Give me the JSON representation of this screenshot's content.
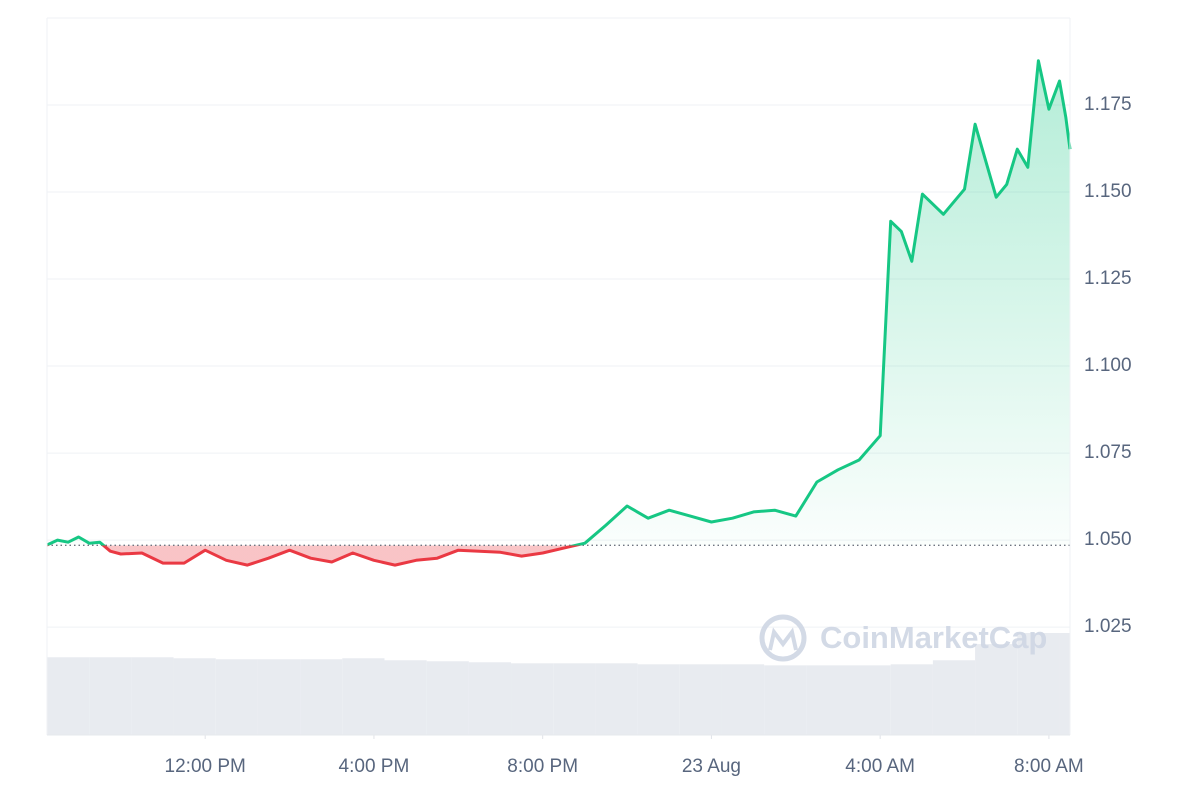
{
  "chart_data": {
    "type": "line",
    "watermark": "CoinMarketCap",
    "xlim": [
      8.25,
      32.5
    ],
    "xticks": [
      {
        "value": 12,
        "label": "12:00 PM"
      },
      {
        "value": 16,
        "label": "4:00 PM"
      },
      {
        "value": 20,
        "label": "8:00 PM"
      },
      {
        "value": 24,
        "label": "23 Aug"
      },
      {
        "value": 28,
        "label": "4:00 AM"
      },
      {
        "value": 32,
        "label": "8:00 AM"
      }
    ],
    "ylim": [
      0.994,
      1.2
    ],
    "yticks": [
      1.025,
      {
        "value": 1.05,
        "label": "1.050"
      },
      1.075,
      {
        "value": 1.1,
        "label": "1.100"
      },
      1.125,
      {
        "value": 1.15,
        "label": "1.150"
      },
      1.175
    ],
    "grid": true,
    "baseline": 1.0485,
    "up_color": "#16c784",
    "down_color": "#ea3943",
    "x": [
      8.25,
      8.5,
      8.75,
      9,
      9.25,
      9.5,
      9.75,
      10,
      10.5,
      11,
      11.5,
      12,
      12.5,
      13,
      13.5,
      14,
      14.5,
      15,
      15.5,
      16,
      16.5,
      17,
      17.5,
      18,
      18.5,
      19,
      19.5,
      20,
      20.5,
      21,
      21.5,
      22,
      22.5,
      23,
      23.5,
      24,
      24.5,
      25,
      25.5,
      26,
      26.5,
      27,
      27.5,
      28,
      28.25,
      28.5,
      28.75,
      29,
      29.5,
      30,
      30.25,
      30.75,
      31,
      31.25,
      31.5,
      31.75,
      32,
      32.25,
      32.4,
      32.5
    ],
    "values": [
      1.0486,
      1.05,
      1.0494,
      1.0509,
      1.0491,
      1.0494,
      1.0468,
      1.046,
      1.0463,
      1.0434,
      1.0434,
      1.0471,
      1.0442,
      1.0428,
      1.0448,
      1.0471,
      1.0448,
      1.0437,
      1.0463,
      1.0442,
      1.0428,
      1.0442,
      1.0448,
      1.0471,
      1.0468,
      1.0465,
      1.0454,
      1.0463,
      1.0477,
      1.0491,
      1.0543,
      1.0598,
      1.0563,
      1.0586,
      1.0569,
      1.0552,
      1.0563,
      1.0581,
      1.0586,
      1.0569,
      1.0667,
      1.0702,
      1.073,
      1.08,
      1.1416,
      1.1387,
      1.1301,
      1.1494,
      1.1436,
      1.1508,
      1.1695,
      1.1485,
      1.1522,
      1.1623,
      1.1571,
      1.1877,
      1.1738,
      1.1819,
      1.1715,
      1.1623
    ],
    "volume": {
      "color": "#e8ebf0",
      "x": [
        8.25,
        9.25,
        10.25,
        11.25,
        12.25,
        13.25,
        14.25,
        15.25,
        16.25,
        17.25,
        18.25,
        19.25,
        20.25,
        21.25,
        22.25,
        23.25,
        24.25,
        25.25,
        26.25,
        27.25,
        28.25,
        29.25,
        30.25,
        31.25,
        32.25
      ],
      "values": [
        77,
        77,
        77,
        76,
        75,
        75,
        75,
        76,
        74,
        73,
        72,
        71,
        71,
        71,
        70,
        70,
        70,
        69,
        69,
        69,
        70,
        74,
        90,
        101,
        101
      ]
    }
  }
}
